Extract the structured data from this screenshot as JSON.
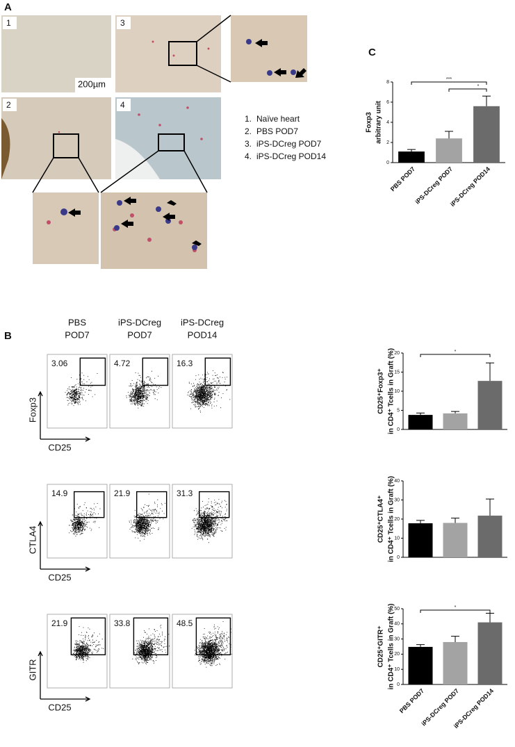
{
  "panel_labels": [
    "A",
    "B",
    "C"
  ],
  "histology": {
    "scale_bar": "200µm",
    "image_labels": [
      "1",
      "3",
      "2",
      "4"
    ],
    "legend": [
      {
        "num": "1.",
        "text": "Naïve heart"
      },
      {
        "num": "2.",
        "text": "PBS POD7"
      },
      {
        "num": "3.",
        "text": "iPS-DCreg POD7"
      },
      {
        "num": "4.",
        "text": "iPS-DCreg POD14"
      }
    ]
  },
  "flow": {
    "columns": [
      [
        "PBS",
        "POD7"
      ],
      [
        "iPS-DCreg",
        "POD7"
      ],
      [
        "iPS-DCreg",
        "POD14"
      ]
    ],
    "rows": [
      {
        "y_label": "Foxp3",
        "x_label": "CD25",
        "values": [
          3.06,
          4.72,
          16.3
        ]
      },
      {
        "y_label": "CTLA4",
        "x_label": "CD25",
        "values": [
          14.9,
          21.9,
          31.3
        ]
      },
      {
        "y_label": "GITR",
        "x_label": "CD25",
        "values": [
          21.9,
          33.8,
          48.5
        ]
      }
    ]
  },
  "chart_data": [
    {
      "type": "bar",
      "y_label": [
        "Foxp3",
        "arbitrary unit"
      ],
      "categories": [
        "PBS POD7",
        "iPS-DCreg POD7",
        "iPS-DCreg POD14"
      ],
      "values": [
        1.1,
        2.4,
        5.6
      ],
      "errors": [
        0.2,
        0.7,
        1.0
      ],
      "colors": [
        "#000000",
        "#a3a3a3",
        "#6b6b6b"
      ],
      "ylim": [
        0,
        8
      ],
      "yticks": [
        0,
        2,
        4,
        6,
        8
      ],
      "significance": [
        {
          "from": 0,
          "to": 2,
          "label": "***"
        },
        {
          "from": 1,
          "to": 2,
          "label": "*"
        }
      ]
    },
    {
      "type": "bar",
      "y_label": [
        "CD25⁺Foxp3⁺",
        "in CD4⁺ Tcells in Graft (%)"
      ],
      "categories": [
        null,
        null,
        null
      ],
      "values": [
        3.8,
        4.2,
        12.7
      ],
      "errors": [
        0.5,
        0.5,
        4.7
      ],
      "colors": [
        "#000000",
        "#a3a3a3",
        "#6b6b6b"
      ],
      "ylim": [
        0,
        20
      ],
      "yticks": [
        0,
        5,
        10,
        15,
        20
      ],
      "significance": [
        {
          "from": 0,
          "to": 2,
          "label": "*"
        }
      ]
    },
    {
      "type": "bar",
      "y_label": [
        "CD25⁺CTLA4⁺",
        "in CD4⁺ Tcells in Graft (%)"
      ],
      "categories": [
        null,
        null,
        null
      ],
      "values": [
        17.8,
        18.0,
        21.8
      ],
      "errors": [
        1.5,
        2.5,
        8.7
      ],
      "colors": [
        "#000000",
        "#a3a3a3",
        "#6b6b6b"
      ],
      "ylim": [
        0,
        40
      ],
      "yticks": [
        0,
        10,
        20,
        30,
        40
      ],
      "significance": []
    },
    {
      "type": "bar",
      "y_label": [
        "CD25⁺GITR⁺",
        "in CD4⁺ Tcells in Graft (%)"
      ],
      "categories": [
        "PBS POD7",
        "iPS-DCreg POD7",
        "iPS-DCreg POD14"
      ],
      "values": [
        24.8,
        28.0,
        41.0
      ],
      "errors": [
        1.5,
        3.8,
        6.0
      ],
      "colors": [
        "#000000",
        "#a3a3a3",
        "#6b6b6b"
      ],
      "ylim": [
        0,
        50
      ],
      "yticks": [
        0,
        10,
        20,
        30,
        40,
        50
      ],
      "significance": [
        {
          "from": 0,
          "to": 2,
          "label": "*"
        }
      ]
    }
  ]
}
